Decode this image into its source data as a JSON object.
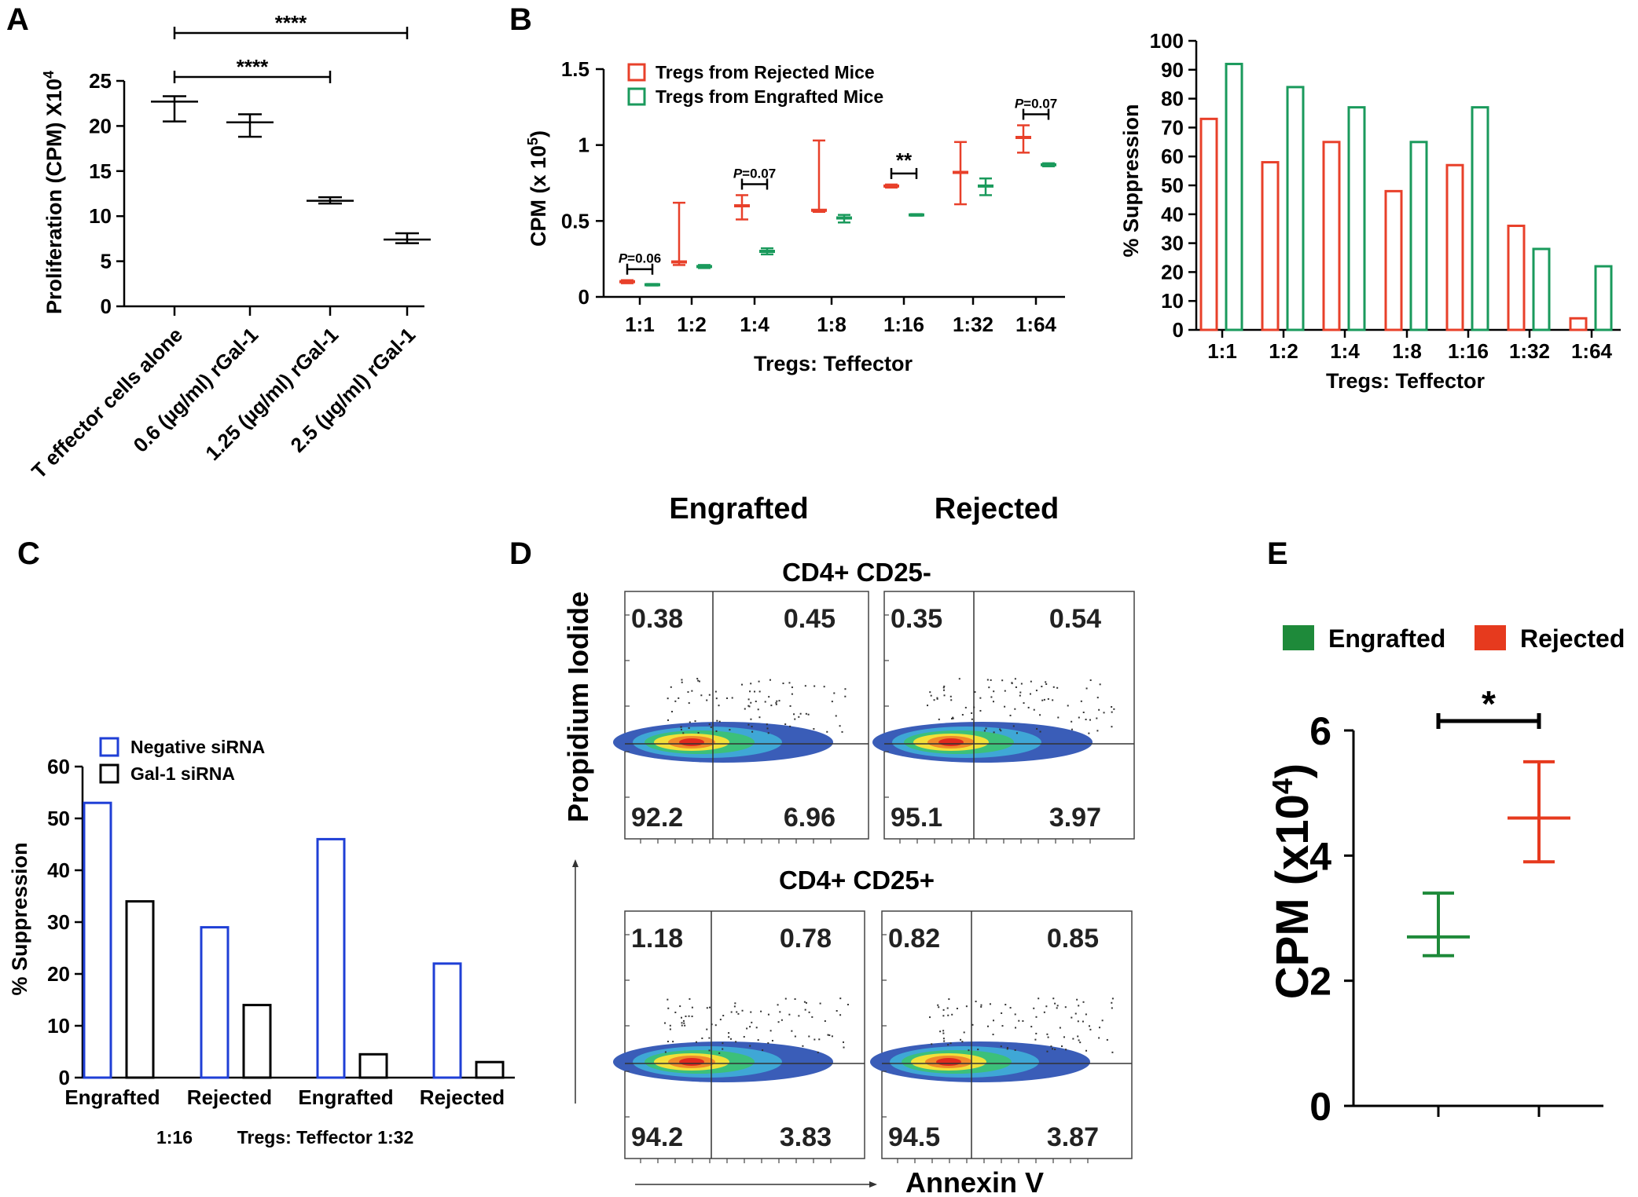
{
  "panels": {
    "A": {
      "letter": "A",
      "chart_data": {
        "type": "box",
        "categories": [
          "T effector cells alone",
          "0.6 (µg/ml) rGal-1",
          "1.25 (µg/ml) rGal-1",
          "2.5 (µg/ml) rGal-1"
        ],
        "series": [
          {
            "name": "Proliferation",
            "values": [
              {
                "mean": 22.7,
                "low": 20.5,
                "high": 23.3
              },
              {
                "mean": 20.4,
                "low": 18.8,
                "high": 21.3
              },
              {
                "mean": 11.7,
                "low": 11.4,
                "high": 12.1
              },
              {
                "mean": 7.4,
                "low": 7.0,
                "high": 8.1
              }
            ]
          }
        ],
        "ylabel": "Proliferation (CPM) X10",
        "ylabel_sup": "4",
        "ylim": [
          0,
          25
        ],
        "yticks": [
          "0",
          "5",
          "10",
          "15",
          "20",
          "25"
        ],
        "significance": [
          {
            "from": 0,
            "to": 3,
            "label": "****"
          },
          {
            "from": 0,
            "to": 2,
            "label": "****"
          }
        ]
      }
    },
    "B": {
      "letter": "B",
      "chart_data": [
        {
          "type": "box",
          "categories": [
            "1:1",
            "1:2",
            "1:4",
            "1:8",
            "1:16",
            "1:32",
            "1:64"
          ],
          "series": [
            {
              "name": "Tregs from Rejected Mice",
              "color": "#e8402a",
              "values": [
                {
                  "mean": 0.1,
                  "low": 0.09,
                  "high": 0.11
                },
                {
                  "mean": 0.23,
                  "low": 0.21,
                  "high": 0.62
                },
                {
                  "mean": 0.6,
                  "low": 0.51,
                  "high": 0.67
                },
                {
                  "mean": 0.57,
                  "low": 0.56,
                  "high": 1.03
                },
                {
                  "mean": 0.73,
                  "low": 0.72,
                  "high": 0.74
                },
                {
                  "mean": 0.82,
                  "low": 0.61,
                  "high": 1.02
                },
                {
                  "mean": 1.05,
                  "low": 0.95,
                  "high": 1.13
                }
              ]
            },
            {
              "name": "Tregs from Engrafted Mice",
              "color": "#1a9a5c",
              "values": [
                {
                  "mean": 0.08,
                  "low": 0.075,
                  "high": 0.085
                },
                {
                  "mean": 0.2,
                  "low": 0.19,
                  "high": 0.21
                },
                {
                  "mean": 0.3,
                  "low": 0.28,
                  "high": 0.32
                },
                {
                  "mean": 0.52,
                  "low": 0.49,
                  "high": 0.54
                },
                {
                  "mean": 0.54,
                  "low": 0.535,
                  "high": 0.545
                },
                {
                  "mean": 0.73,
                  "low": 0.67,
                  "high": 0.78
                },
                {
                  "mean": 0.87,
                  "low": 0.86,
                  "high": 0.88
                }
              ]
            }
          ],
          "xlabel": "Tregs: Teffector",
          "ylabel": "CPM (x 10",
          "ylabel_sup": "5",
          "ylabel_end": ")",
          "ylim": [
            0,
            1.5
          ],
          "yticks": [
            "0",
            "0.5",
            "1",
            "1.5"
          ],
          "annotations": [
            {
              "index": 0,
              "label": "P=0.06",
              "italic_part": "P"
            },
            {
              "index": 2,
              "label": "P=0.07",
              "italic_part": "P"
            },
            {
              "index": 4,
              "label": "**"
            },
            {
              "index": 6,
              "label": "P=0.07",
              "italic_part": "P"
            }
          ]
        },
        {
          "type": "bar",
          "categories": [
            "1:1",
            "1:2",
            "1:4",
            "1:8",
            "1:16",
            "1:32",
            "1:64"
          ],
          "series": [
            {
              "name": "Rejected",
              "color": "#e8402a",
              "values": [
                73,
                58,
                65,
                48,
                57,
                36,
                4
              ]
            },
            {
              "name": "Engrafted",
              "color": "#1a9a5c",
              "values": [
                92,
                84,
                77,
                65,
                77,
                28,
                22
              ]
            }
          ],
          "xlabel": "Tregs: Teffector",
          "ylabel": "% Suppression",
          "ylim": [
            0,
            100
          ],
          "yticks": [
            "0",
            "10",
            "20",
            "30",
            "40",
            "50",
            "60",
            "70",
            "80",
            "90",
            "100"
          ]
        }
      ]
    },
    "C": {
      "letter": "C",
      "chart_data": {
        "type": "bar",
        "categories": [
          "Engrafted",
          "Rejected",
          "Engrafted",
          "Rejected"
        ],
        "series": [
          {
            "name": "Negative siRNA",
            "color": "#1f3fd6",
            "values": [
              53,
              29,
              46,
              22
            ]
          },
          {
            "name": "Gal-1 siRNA",
            "color": "#000000",
            "values": [
              34,
              14,
              4.5,
              3
            ]
          }
        ],
        "xlabel_left": "1:16",
        "xlabel": "Tregs: Teffector 1:32",
        "ylabel": "% Suppression",
        "ylim": [
          0,
          60
        ],
        "yticks": [
          "0",
          "10",
          "20",
          "30",
          "40",
          "50",
          "60"
        ]
      }
    },
    "D": {
      "letter": "D",
      "col_headers": [
        "Engrafted",
        "Rejected"
      ],
      "row_headers": [
        "CD4+ CD25-",
        "CD4+ CD25+"
      ],
      "ylabel": "Propidium Iodide",
      "xlabel": "Annexin V",
      "plots": [
        {
          "ul": "0.38",
          "ur": "0.45",
          "ll": "92.2",
          "lr": "6.96"
        },
        {
          "ul": "0.35",
          "ur": "0.54",
          "ll": "95.1",
          "lr": "3.97"
        },
        {
          "ul": "1.18",
          "ur": "0.78",
          "ll": "94.2",
          "lr": "3.83"
        },
        {
          "ul": "0.82",
          "ur": "0.85",
          "ll": "94.5",
          "lr": "3.87"
        }
      ]
    },
    "E": {
      "letter": "E",
      "chart_data": {
        "type": "box",
        "categories": [
          "Engrafted",
          "Rejected"
        ],
        "series": [
          {
            "name": "Engrafted",
            "color": "#1e8a3a",
            "values": [
              {
                "mean": 2.7,
                "low": 2.4,
                "high": 3.4
              }
            ]
          },
          {
            "name": "Rejected",
            "color": "#e63a1e",
            "values": [
              {
                "mean": 4.6,
                "low": 3.9,
                "high": 5.5
              }
            ]
          }
        ],
        "ylabel": "CPM (x10",
        "ylabel_sup": "4",
        "ylabel_end": ")",
        "ylim": [
          0,
          6
        ],
        "yticks": [
          "0",
          "2",
          "4",
          "6"
        ],
        "significance": [
          {
            "from": 0,
            "to": 1,
            "label": "*"
          }
        ]
      }
    }
  }
}
